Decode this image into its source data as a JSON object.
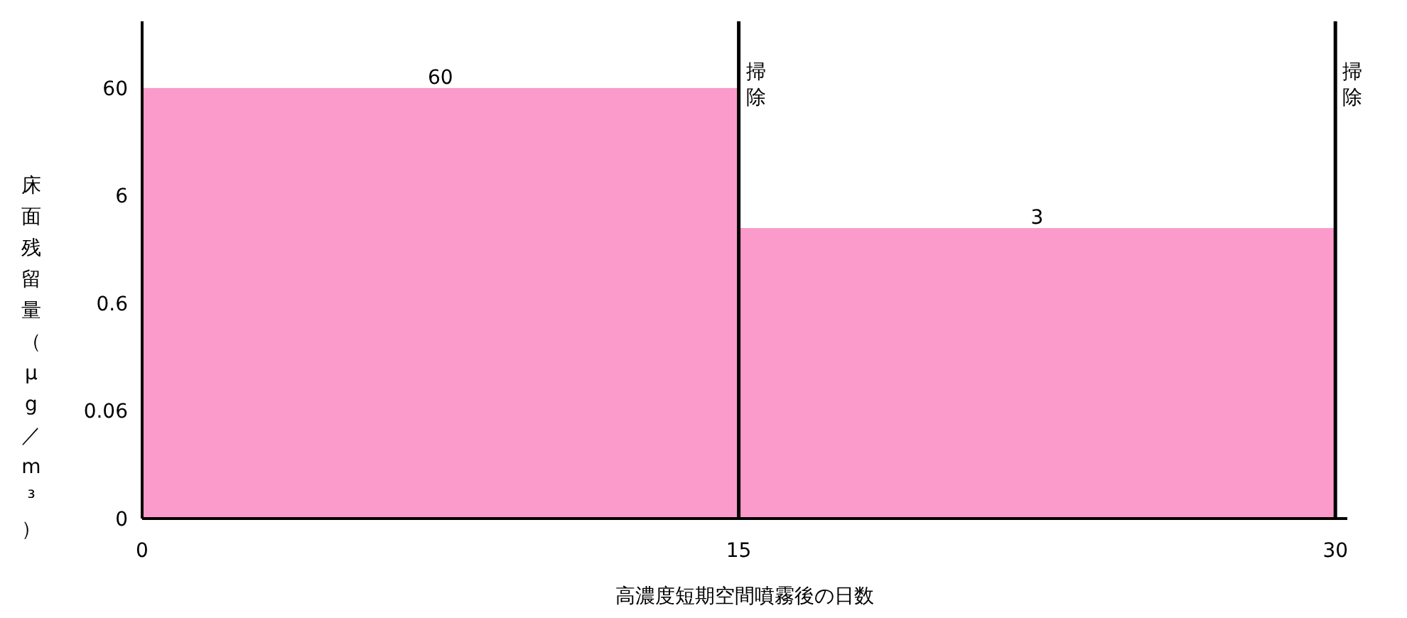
{
  "chart_data": {
    "type": "histogram",
    "xlabel": "高濃度短期空間噴霧後の日数",
    "ylabel": "床面残留量（µg／m³）",
    "bins": [
      0,
      15,
      30
    ],
    "values": [
      60,
      3
    ],
    "color": "#fb9bcb",
    "data_labels": true,
    "log": "y",
    "xlim": [
      0,
      30.3
    ],
    "xticks": [
      0,
      15,
      30
    ],
    "ylim": [
      0.006,
      250
    ],
    "yticks": [
      {
        "value": 0.006,
        "label": "0"
      },
      0.06,
      0.6,
      6,
      60
    ],
    "ref_lines": [
      {
        "axis": "x",
        "value": 15,
        "label": "掃除",
        "color": "#000000"
      },
      {
        "axis": "x",
        "value": 30,
        "label": "掃除",
        "color": "#000000"
      }
    ]
  }
}
